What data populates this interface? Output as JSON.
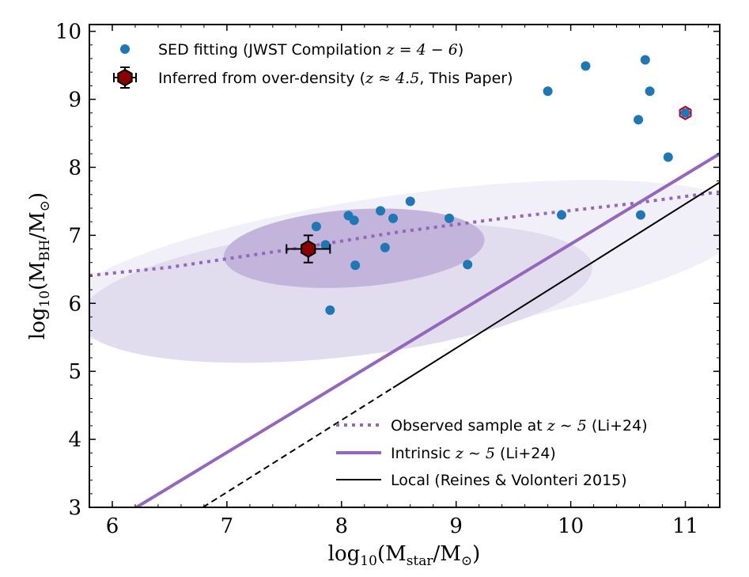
{
  "chart_data": {
    "type": "scatter",
    "title": "",
    "xlim": [
      5.8,
      11.3
    ],
    "ylim": [
      3,
      10.1
    ],
    "x_ticks": [
      6,
      7,
      8,
      9,
      10,
      11
    ],
    "y_ticks": [
      3,
      4,
      5,
      6,
      7,
      8,
      9,
      10
    ],
    "xlabel": {
      "prefix": "log",
      "sub": "10",
      "body": "(M",
      "sub2": "star",
      "mid": "/M",
      "sun": "⊙",
      "close": ")"
    },
    "ylabel": {
      "prefix": "log",
      "sub": "10",
      "body": "(M",
      "sub2": "BH",
      "mid": "/M",
      "sun": "⊙",
      "close": ")"
    },
    "legend_top": {
      "placement": "top-left",
      "sed_label": "SED fitting (JWST Compilation ",
      "sed_math": "z = 4 − 6",
      "sed_close": ")",
      "inferred_label": "Inferred from over-density (",
      "inferred_math": "z ≈ 4.5",
      "inferred_close": ", This Paper)"
    },
    "legend_bottom": {
      "placement": "bottom-right",
      "observed_label": "Observed sample at ",
      "observed_math": "z ∼ 5",
      "observed_close": " (Li+24)",
      "intrinsic_label": "Intrinsic ",
      "intrinsic_math": "z ∼ 5",
      "intrinsic_close": " (Li+24)",
      "local_label": "Local (Reines & Volonteri 2015)"
    },
    "colors": {
      "sed_points": "#1f77b4",
      "this_paper": "#8b0000",
      "li24": "#9467bd",
      "contour_outer": "#f1f0f8",
      "contour_mid": "#e1ddef",
      "contour_inner": "#c2b4da",
      "local": "#000000"
    },
    "series": [
      {
        "name": "SED fitting (JWST Compilation z=4-6)",
        "type": "scatter",
        "points": [
          [
            7.78,
            7.13
          ],
          [
            7.86,
            6.86
          ],
          [
            7.9,
            5.9
          ],
          [
            8.06,
            7.29
          ],
          [
            8.11,
            7.22
          ],
          [
            8.12,
            6.56
          ],
          [
            8.34,
            7.36
          ],
          [
            8.38,
            6.82
          ],
          [
            8.45,
            7.25
          ],
          [
            8.6,
            7.5
          ],
          [
            8.94,
            7.25
          ],
          [
            9.1,
            6.57
          ],
          [
            9.8,
            9.12
          ],
          [
            9.92,
            7.3
          ],
          [
            10.13,
            9.49
          ],
          [
            10.59,
            8.7
          ],
          [
            10.61,
            7.3
          ],
          [
            10.65,
            9.58
          ],
          [
            10.69,
            9.12
          ],
          [
            10.85,
            8.15
          ],
          [
            11.0,
            8.8
          ]
        ]
      },
      {
        "name": "Inferred from over-density (z≈4.5, This Paper)",
        "type": "errorbar",
        "x": 7.71,
        "y": 6.8,
        "xerr": [
          0.19,
          0.19
        ],
        "yerr": [
          0.2,
          0.2
        ]
      },
      {
        "name": "Observed sample at z~5 (Li+24)",
        "type": "dotted-line",
        "points": [
          [
            5.8,
            6.41
          ],
          [
            6.5,
            6.53
          ],
          [
            7.5,
            6.78
          ],
          [
            8.5,
            7.05
          ],
          [
            9.5,
            7.27
          ],
          [
            10.5,
            7.46
          ],
          [
            11.3,
            7.64
          ]
        ]
      },
      {
        "name": "Intrinsic z~5 (Li+24)",
        "type": "line",
        "points": [
          [
            6.21,
            3.0
          ],
          [
            11.3,
            8.2
          ]
        ]
      },
      {
        "name": "Local (Reines & Volonteri 2015)",
        "type": "line",
        "solid_from": 8.45,
        "points": [
          [
            6.79,
            3.0
          ],
          [
            11.3,
            7.78
          ]
        ]
      }
    ],
    "contours": [
      {
        "level": "outer",
        "cx": 8.55,
        "cy": 6.55,
        "rx": 3.05,
        "ry": 1.05,
        "angle_deg": 8
      },
      {
        "level": "mid",
        "cx": 7.95,
        "cy": 6.15,
        "rx": 2.25,
        "ry": 0.95,
        "angle_deg": 6
      },
      {
        "level": "inner",
        "cx": 8.11,
        "cy": 6.81,
        "rx": 1.14,
        "ry": 0.57,
        "angle_deg": 4
      }
    ]
  }
}
